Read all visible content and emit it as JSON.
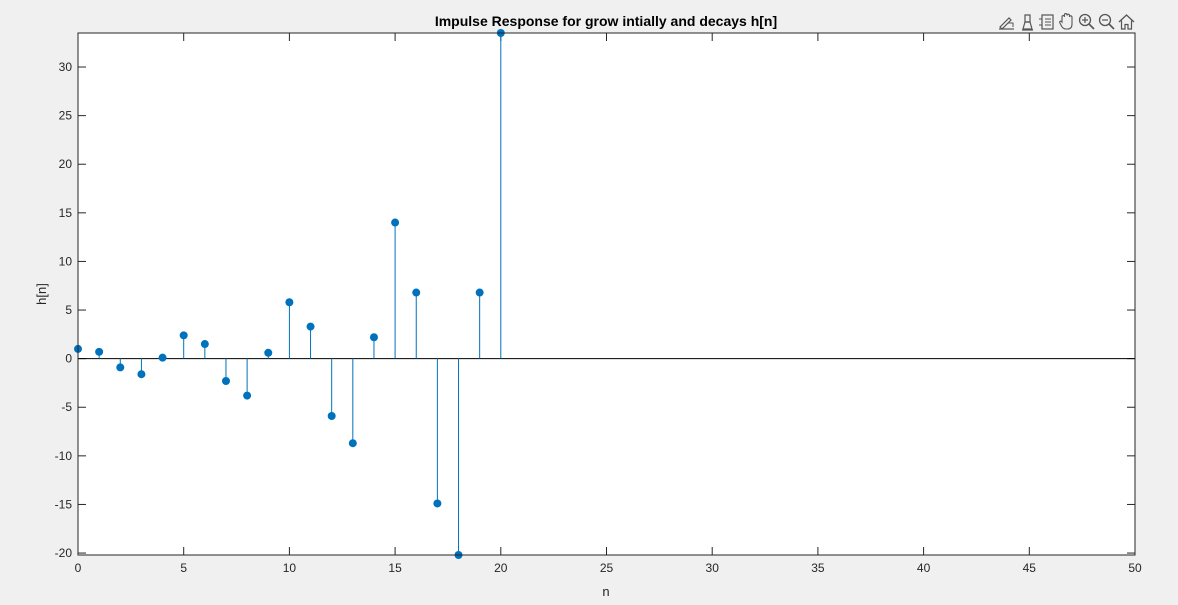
{
  "toolbar": {
    "icons": [
      "brush-edit-icon",
      "data-tips-icon",
      "legend-icon",
      "pan-hand-icon",
      "zoom-in-icon",
      "zoom-out-icon",
      "home-restore-icon"
    ]
  },
  "chart_data": {
    "type": "stem",
    "title": "Impulse Response for grow intially and decays h[n]",
    "xlabel": "n",
    "ylabel": "h[n]",
    "xlim": [
      0,
      50
    ],
    "ylim": [
      -20.2,
      33.5
    ],
    "xticks": [
      0,
      5,
      10,
      15,
      20,
      25,
      30,
      35,
      40,
      45,
      50
    ],
    "yticks": [
      -20,
      -15,
      -10,
      -5,
      0,
      5,
      10,
      15,
      20,
      25,
      30
    ],
    "color": "#0072BD",
    "series": [
      {
        "x": [
          0,
          1,
          2,
          3,
          4,
          5,
          6,
          7,
          8,
          9,
          10,
          11,
          12,
          13,
          14,
          15,
          16,
          17,
          18,
          19,
          20
        ],
        "values": [
          1.0,
          0.7,
          -0.9,
          -1.6,
          0.1,
          2.4,
          1.5,
          -2.3,
          -3.8,
          0.6,
          5.8,
          3.3,
          -5.9,
          -8.7,
          2.2,
          14.0,
          6.8,
          -14.9,
          -20.2,
          6.8,
          33.5
        ]
      }
    ]
  }
}
